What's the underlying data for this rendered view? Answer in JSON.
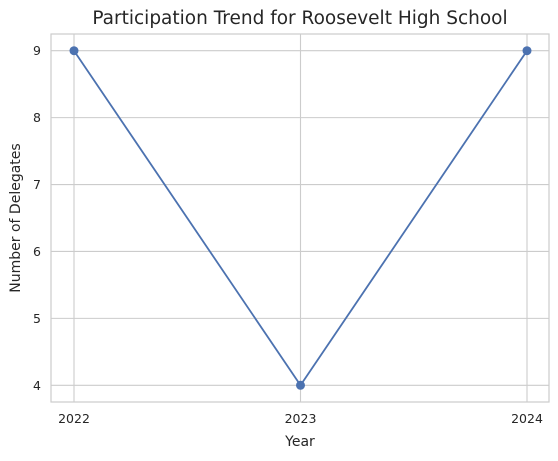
{
  "chart_data": {
    "type": "line",
    "title": "Participation Trend for Roosevelt High School",
    "xlabel": "Year",
    "ylabel": "Number of Delegates",
    "x": [
      "2022",
      "2023",
      "2024"
    ],
    "series": [
      {
        "values": [
          9,
          4,
          9
        ],
        "marker": "circle"
      }
    ],
    "yticks": [
      4,
      5,
      6,
      7,
      8,
      9
    ],
    "ylim": [
      3.75,
      9.25
    ],
    "grid": true,
    "colors": {
      "line": "#4c72b0",
      "grid": "#cccccc",
      "spine": "#cccccc",
      "text": "#262626"
    }
  }
}
